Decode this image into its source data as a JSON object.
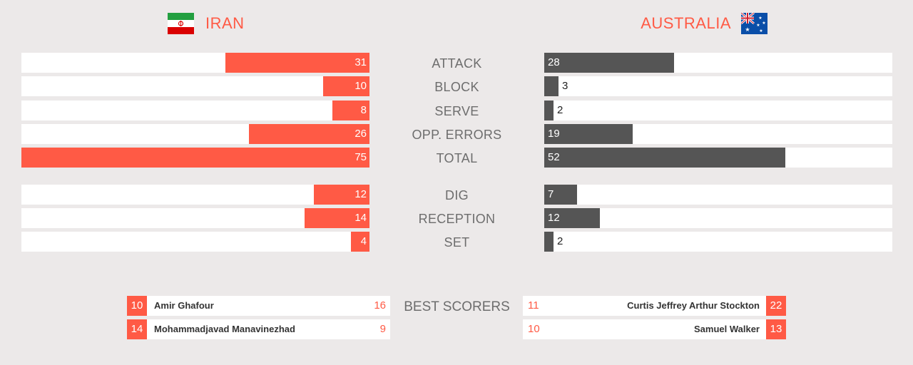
{
  "colors": {
    "home": "#ff5a45",
    "away": "#555555",
    "track": "#ffffff",
    "label": "#6d6d6d"
  },
  "home_team": {
    "name": "IRAN",
    "flag_icon": "iran-flag-icon"
  },
  "away_team": {
    "name": "AUSTRALIA",
    "flag_icon": "australia-flag-icon"
  },
  "chart_data": {
    "type": "bar",
    "orientation": "horizontal-diverging",
    "xlim": [
      0,
      75
    ],
    "categories": [
      "ATTACK",
      "BLOCK",
      "SERVE",
      "OPP. ERRORS",
      "TOTAL",
      "DIG",
      "RECEPTION",
      "SET"
    ],
    "series": [
      {
        "name": "IRAN",
        "values": [
          31,
          10,
          8,
          26,
          75,
          12,
          14,
          4
        ]
      },
      {
        "name": "AUSTRALIA",
        "values": [
          28,
          3,
          2,
          19,
          52,
          7,
          12,
          2
        ]
      }
    ]
  },
  "best_scorers": {
    "label": "BEST SCORERS",
    "home": [
      {
        "number": "10",
        "name": "Amir Ghafour",
        "points": "16"
      },
      {
        "number": "14",
        "name": "Mohammadjavad Manavinezhad",
        "points": "9"
      }
    ],
    "away": [
      {
        "number": "22",
        "name": "Curtis Jeffrey Arthur Stockton",
        "points": "11"
      },
      {
        "number": "13",
        "name": "Samuel Walker",
        "points": "10"
      }
    ]
  }
}
